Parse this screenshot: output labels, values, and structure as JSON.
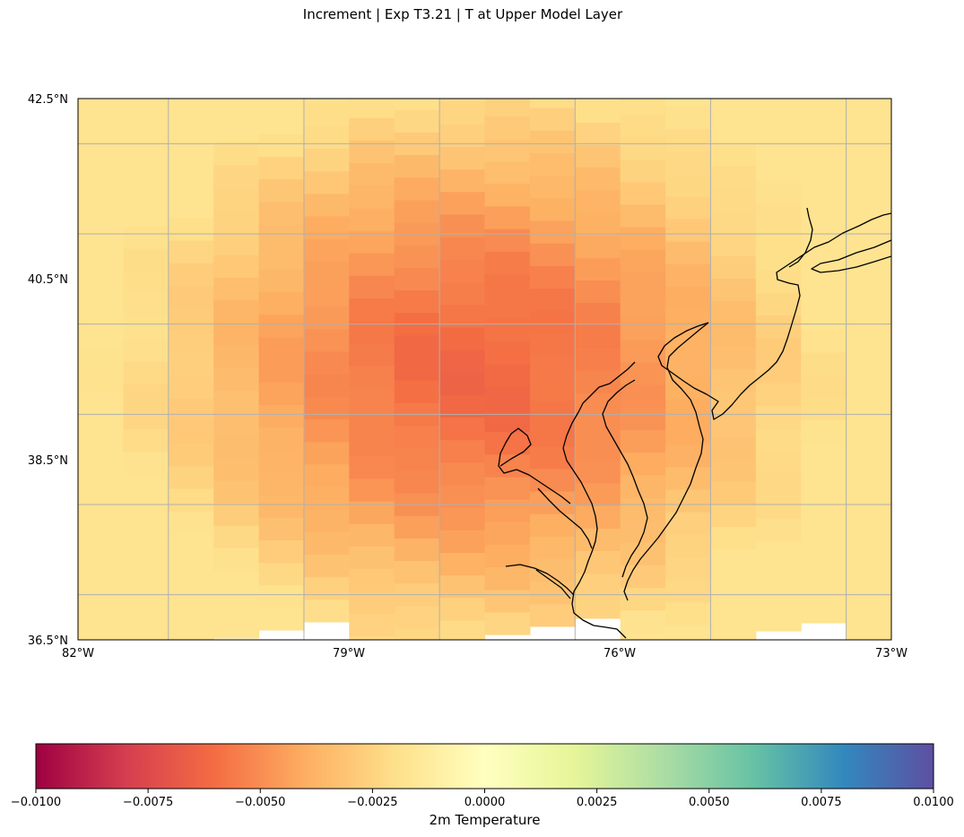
{
  "title": "Increment | Exp T3.21 | T at Upper Model Layer",
  "map": {
    "projection": "PlateCarree",
    "lon_range": [
      -82,
      -73
    ],
    "lat_range": [
      36.5,
      42.5
    ],
    "gridlines": true,
    "coastlines": true,
    "lon_ticks": [
      {
        "value": -82,
        "label": "82°W"
      },
      {
        "value": -79,
        "label": "79°W"
      },
      {
        "value": -76,
        "label": "76°W"
      },
      {
        "value": -73,
        "label": "73°W"
      }
    ],
    "lat_ticks": [
      {
        "value": 42.5,
        "label": "42.5°N"
      },
      {
        "value": 40.5,
        "label": "40.5°N"
      },
      {
        "value": 38.5,
        "label": "38.5°N"
      },
      {
        "value": 36.5,
        "label": "36.5°N"
      }
    ],
    "field_min_approx": -0.0062,
    "field_center_approx": {
      "lon": -77.6,
      "lat": 39.5
    }
  },
  "colorbar": {
    "label": "2m Temperature",
    "colormap": "Spectral",
    "vmin": -0.01,
    "vmax": 0.01,
    "ticks": [
      "−0.0100",
      "−0.0075",
      "−0.0050",
      "−0.0025",
      "0.0000",
      "0.0025",
      "0.0050",
      "0.0075",
      "0.0100"
    ],
    "stops": [
      "#9e0142",
      "#d53e4f",
      "#f46d43",
      "#fdae61",
      "#fee08b",
      "#ffffbf",
      "#e6f598",
      "#abdda4",
      "#66c2a5",
      "#3288bd",
      "#5e4fa2"
    ]
  }
}
